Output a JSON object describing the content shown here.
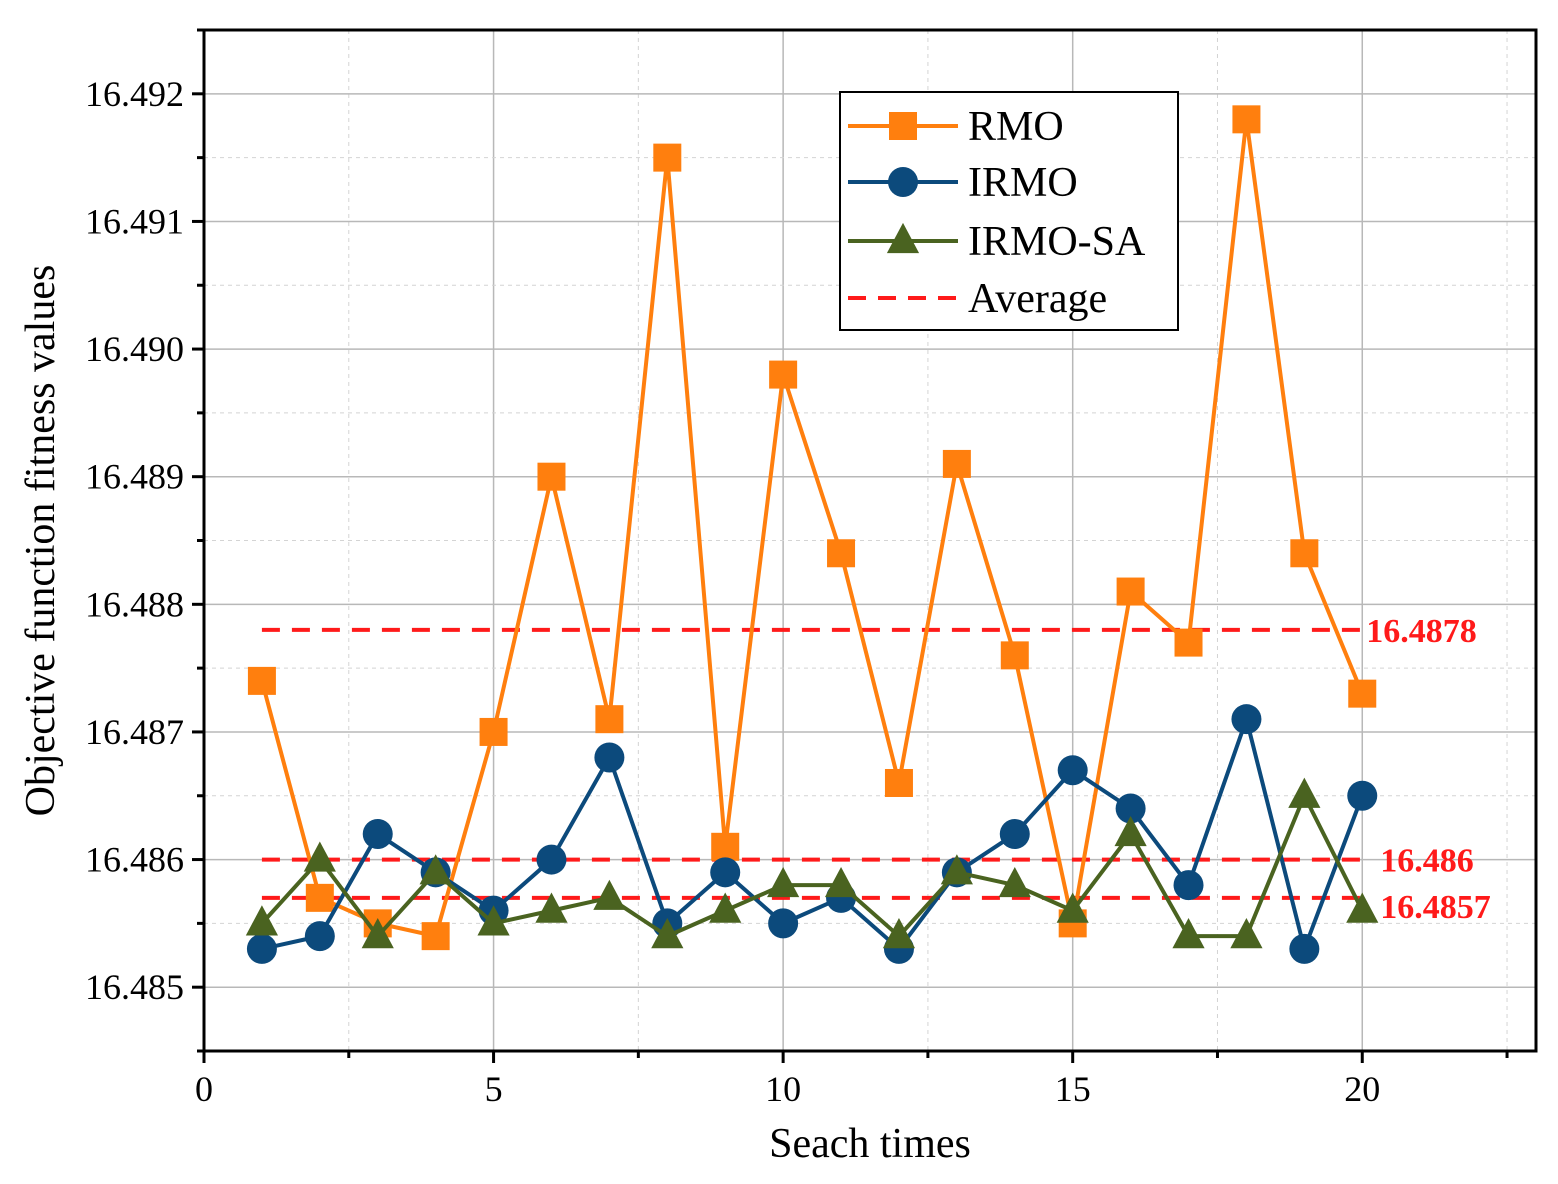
{
  "chart_data": {
    "type": "line",
    "title": "",
    "xlabel": "Seach times",
    "ylabel": "Objective function fitness values",
    "xlim": [
      0,
      23
    ],
    "ylim": [
      16.4845,
      16.4925
    ],
    "x_ticks": [
      0,
      5,
      10,
      15,
      20
    ],
    "x_tick_labels": [
      "0",
      "5",
      "10",
      "15",
      "20"
    ],
    "y_ticks": [
      16.485,
      16.486,
      16.487,
      16.488,
      16.489,
      16.49,
      16.491,
      16.492
    ],
    "y_tick_labels": [
      "16.485",
      "16.486",
      "16.487",
      "16.488",
      "16.489",
      "16.490",
      "16.491",
      "16.492"
    ],
    "grid": true,
    "legend_position": "top-right",
    "x": [
      1,
      2,
      3,
      4,
      5,
      6,
      7,
      8,
      9,
      10,
      11,
      12,
      13,
      14,
      15,
      16,
      17,
      18,
      19,
      20
    ],
    "series": [
      {
        "name": "RMO",
        "color": "#ff7f0e",
        "marker": "square",
        "values": [
          16.4874,
          16.4857,
          16.4855,
          16.4854,
          16.487,
          16.489,
          16.4871,
          16.4915,
          16.4861,
          16.4898,
          16.4884,
          16.4866,
          16.4891,
          16.4876,
          16.4855,
          16.4881,
          16.4877,
          16.4918,
          16.4884,
          16.4873
        ]
      },
      {
        "name": "IRMO",
        "color": "#0c4a7c",
        "marker": "circle",
        "values": [
          16.4853,
          16.4854,
          16.4862,
          16.4859,
          16.4856,
          16.486,
          16.4868,
          16.4855,
          16.4859,
          16.4855,
          16.4857,
          16.4853,
          16.4859,
          16.4862,
          16.4867,
          16.4864,
          16.4858,
          16.4871,
          16.4853,
          16.4865
        ]
      },
      {
        "name": "IRMO-SA",
        "color": "#4a6320",
        "marker": "triangle",
        "values": [
          16.4855,
          16.486,
          16.4854,
          16.4859,
          16.4855,
          16.4856,
          16.4857,
          16.4854,
          16.4856,
          16.4858,
          16.4858,
          16.4854,
          16.4859,
          16.4858,
          16.4856,
          16.4862,
          16.4854,
          16.4854,
          16.4865,
          16.4856
        ]
      }
    ],
    "averages": [
      {
        "value": 16.4878,
        "label": "16.4878",
        "color": "#ff1a1a"
      },
      {
        "value": 16.486,
        "label": "16.486",
        "color": "#ff1a1a"
      },
      {
        "value": 16.4857,
        "label": "16.4857",
        "color": "#ff1a1a"
      }
    ],
    "legend": {
      "average_label": "Average"
    }
  }
}
